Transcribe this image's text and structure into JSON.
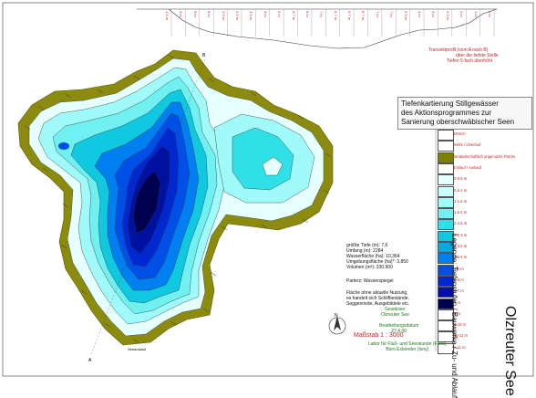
{
  "title_box": {
    "line1": "Tiefenkartierung Stillgewässer",
    "line2": "des Aktionsprogrammes zur",
    "line3": "Sanierung oberschwäbischer Seen"
  },
  "transect": {
    "depth_labels": [
      "1.5 m",
      "3 m",
      "5 m",
      "6 m",
      "3.5 m",
      "2.5 m",
      "3.5 m",
      "4 m",
      "5 m",
      "5.7 m",
      "6 m",
      "7 m",
      "6.7 m",
      "6.7 m",
      "6.7 m",
      "7 m",
      "7 m",
      "5.5 m",
      "4 m",
      "3 m",
      "2.5 m",
      "2 m",
      "1 m",
      "0 m"
    ],
    "notes": [
      "Transektprofil (vom A nach B)",
      "über die tiefste Stelle",
      "Tiefen 5-fach überhöht"
    ]
  },
  "stats": {
    "lines": [
      "größte Tiefe (m): 7,6",
      "Umfang (m): 2284",
      "Wasserfläche (ha): 10,364",
      "Umgebungsfläche (ha)*: 3,850",
      "Volumen (m³): 330.900"
    ],
    "pegel": "Parterz: Wasserspiegel",
    "nutzung": [
      "Fläche ohne aktuelle Nutzung,",
      "es handelt sich Schilfbestände,",
      "Seggenriede, Ausgebildete etc."
    ]
  },
  "credits": {
    "gewaesser": "Gewässer",
    "lake_short": "Olzreuter See",
    "bearbeitung": "Bearbeitungsdatum",
    "date": "27.4.00",
    "labor": "Labor für Fluß- und Seenkunde (Fürst)",
    "buero": "Büro Eckender (Isny)"
  },
  "scale": "Maßstab 1 : 3000",
  "north": "N",
  "point_a": "A",
  "point_b": "B",
  "legend_title": "Legende: Tiefenstufen / Bauwerke / Zu- und Ablauf",
  "lake_name": "Olzreuter See",
  "legend": [
    {
      "label": "Mönch",
      "color": "#ffffff"
    },
    {
      "label": "Wehr / Überlauf",
      "color": "#ffffff"
    },
    {
      "label": "landwirtschaftlich ungenutzte Fläche",
      "color": "#808000"
    },
    {
      "label": "Einlauf / Auslauf",
      "color": "#ffffff"
    },
    {
      "label": "0-0.5 m",
      "color": "#e6ffff"
    },
    {
      "label": "0.5-1 m",
      "color": "#c8ffff"
    },
    {
      "label": "1-1.5 m",
      "color": "#a0fafa"
    },
    {
      "label": "1.5-2 m",
      "color": "#70f0f0"
    },
    {
      "label": "2-2.5 m",
      "color": "#30e0e8"
    },
    {
      "label": "2.5-3 m",
      "color": "#10c8e0"
    },
    {
      "label": "3-3.5 m",
      "color": "#00a8e8"
    },
    {
      "label": "3.5-4 m",
      "color": "#0080f0"
    },
    {
      "label": "4-5 m",
      "color": "#0050e8"
    },
    {
      "label": "5-6 m",
      "color": "#0028d0"
    },
    {
      "label": "6-7 m",
      "color": "#0010a0"
    },
    {
      "label": "7 m",
      "color": "#000050"
    },
    {
      "label": "8 m",
      "color": "#ffffff"
    },
    {
      "label": "9-10 m",
      "color": "#ffffff"
    },
    {
      "label": "10-11 m",
      "color": "#ffffff"
    },
    {
      "label": "> 11 m",
      "color": "#ffffff"
    }
  ],
  "inflow_label": "Seeauslauf"
}
